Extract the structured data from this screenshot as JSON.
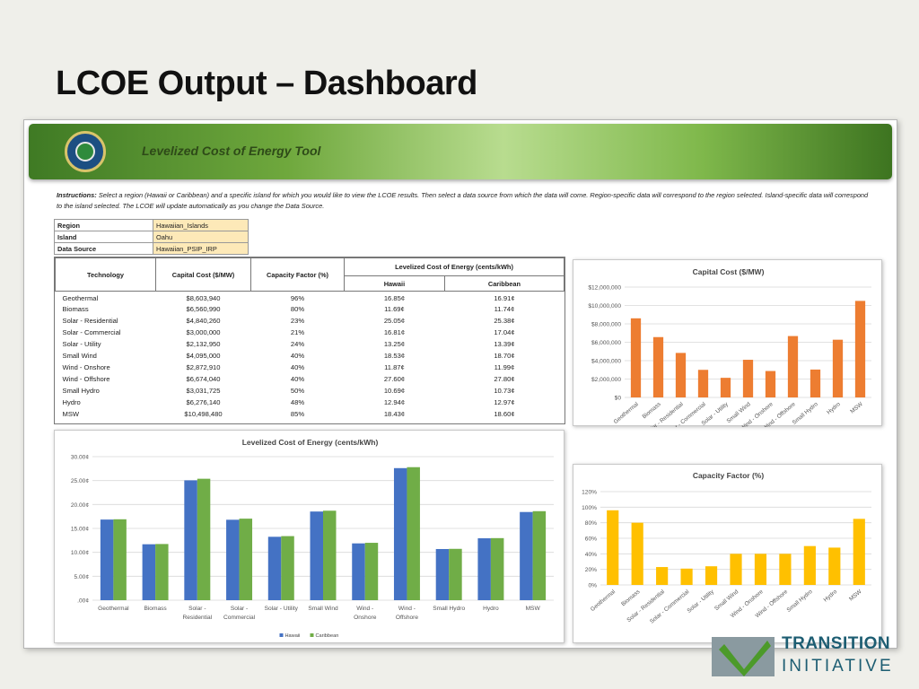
{
  "slide": {
    "title": "LCOE Output – Dashboard"
  },
  "tool": {
    "title": "Levelized Cost of Energy Tool",
    "instructions_label": "Instructions:",
    "instructions_text": "Select a region (Hawaii or Caribbean) and a specific island for which you would like to view the LCOE results. Then select a data source from which the data will come. Region-specific data will correspond to the region selected. Island-specific data will correspond to the island selected. The LCOE will update automatically as you change the Data Source."
  },
  "selectors": {
    "region_label": "Region",
    "region_value": "Hawaiian_Islands",
    "island_label": "Island",
    "island_value": "Oahu",
    "source_label": "Data Source",
    "source_value": "Hawaiian_PSIP_IRP"
  },
  "table": {
    "headers": {
      "technology": "Technology",
      "capital": "Capital Cost ($/MW)",
      "capacity": "Capacity Factor (%)",
      "lcoe": "Levelized Cost of Energy (cents/kWh)",
      "hawaii": "Hawaii",
      "caribbean": "Caribbean"
    },
    "rows": [
      {
        "tech": "Geothermal",
        "capital": "$8,603,940",
        "cf": "96%",
        "hawaii": "16.85¢",
        "caribbean": "16.91¢"
      },
      {
        "tech": "Biomass",
        "capital": "$6,560,990",
        "cf": "80%",
        "hawaii": "11.69¢",
        "caribbean": "11.74¢"
      },
      {
        "tech": "Solar - Residential",
        "capital": "$4,840,260",
        "cf": "23%",
        "hawaii": "25.05¢",
        "caribbean": "25.38¢"
      },
      {
        "tech": "Solar - Commercial",
        "capital": "$3,000,000",
        "cf": "21%",
        "hawaii": "16.81¢",
        "caribbean": "17.04¢"
      },
      {
        "tech": "Solar - Utility",
        "capital": "$2,132,950",
        "cf": "24%",
        "hawaii": "13.25¢",
        "caribbean": "13.39¢"
      },
      {
        "tech": "Small Wind",
        "capital": "$4,095,000",
        "cf": "40%",
        "hawaii": "18.53¢",
        "caribbean": "18.70¢"
      },
      {
        "tech": "Wind - Onshore",
        "capital": "$2,872,910",
        "cf": "40%",
        "hawaii": "11.87¢",
        "caribbean": "11.99¢"
      },
      {
        "tech": "Wind - Offshore",
        "capital": "$6,674,040",
        "cf": "40%",
        "hawaii": "27.60¢",
        "caribbean": "27.80¢"
      },
      {
        "tech": "Small Hydro",
        "capital": "$3,031,725",
        "cf": "50%",
        "hawaii": "10.69¢",
        "caribbean": "10.73¢"
      },
      {
        "tech": "Hydro",
        "capital": "$6,276,140",
        "cf": "48%",
        "hawaii": "12.94¢",
        "caribbean": "12.97¢"
      },
      {
        "tech": "MSW",
        "capital": "$10,498,480",
        "cf": "85%",
        "hawaii": "18.43¢",
        "caribbean": "18.60¢"
      }
    ]
  },
  "logo": {
    "line1": "TRANSITION",
    "line2": "INITIATIVE"
  },
  "chart_data": [
    {
      "id": "lcoe",
      "type": "bar",
      "title": "Levelized Cost of Energy (cents/kWh)",
      "categories": [
        "Geothermal",
        "Biomass",
        "Solar - Residential",
        "Solar - Commercial",
        "Solar - Utility",
        "Small Wind",
        "Wind - Onshore",
        "Wind - Offshore",
        "Small Hydro",
        "Hydro",
        "MSW"
      ],
      "category_labels": [
        [
          "Geothermal"
        ],
        [
          "Biomass"
        ],
        [
          "Solar -",
          "Residential"
        ],
        [
          "Solar -",
          "Commercial"
        ],
        [
          "Solar - Utility"
        ],
        [
          "Small Wind"
        ],
        [
          "Wind -",
          "Onshore"
        ],
        [
          "Wind -",
          "Offshore"
        ],
        [
          "Small Hydro"
        ],
        [
          "Hydro"
        ],
        [
          "MSW"
        ]
      ],
      "series": [
        {
          "name": "Hawaii",
          "color": "#4472c4",
          "values": [
            16.85,
            11.69,
            25.05,
            16.81,
            13.25,
            18.53,
            11.87,
            27.6,
            10.69,
            12.94,
            18.43
          ]
        },
        {
          "name": "Caribbean",
          "color": "#70ad47",
          "values": [
            16.91,
            11.74,
            25.38,
            17.04,
            13.39,
            18.7,
            11.99,
            27.8,
            10.73,
            12.97,
            18.6
          ]
        }
      ],
      "ylim": [
        0,
        30
      ],
      "yticks": [
        ".00¢",
        "5.00¢",
        "10.00¢",
        "15.00¢",
        "20.00¢",
        "25.00¢",
        "30.00¢"
      ],
      "legend": "bottom",
      "grid": true
    },
    {
      "id": "capital",
      "type": "bar",
      "title": "Capital Cost ($/MW)",
      "categories": [
        "Geothermal",
        "Biomass",
        "Solar - Residential",
        "Solar - Commercial",
        "Solar - Utility",
        "Small Wind",
        "Wind - Onshore",
        "Wind - Offshore",
        "Small Hydro",
        "Hydro",
        "MSW"
      ],
      "series": [
        {
          "color": "#ed7d31",
          "values": [
            8603940,
            6560990,
            4840260,
            3000000,
            2132950,
            4095000,
            2872910,
            6674040,
            3031725,
            6276140,
            10498480
          ]
        }
      ],
      "ylim": [
        0,
        12000000
      ],
      "yticks": [
        "$0",
        "$2,000,000",
        "$4,000,000",
        "$6,000,000",
        "$8,000,000",
        "$10,000,000",
        "$12,000,000"
      ],
      "grid": true
    },
    {
      "id": "capacity",
      "type": "bar",
      "title": "Capacity Factor (%)",
      "categories": [
        "Geothermal",
        "Biomass",
        "Solar - Residential",
        "Solar - Commercial",
        "Solar - Utility",
        "Small Wind",
        "Wind - Onshore",
        "Wind - Offshore",
        "Small Hydro",
        "Hydro",
        "MSW"
      ],
      "series": [
        {
          "color": "#ffc000",
          "values": [
            96,
            80,
            23,
            21,
            24,
            40,
            40,
            40,
            50,
            48,
            85
          ]
        }
      ],
      "ylim": [
        0,
        120
      ],
      "yticks": [
        "0%",
        "20%",
        "40%",
        "60%",
        "80%",
        "100%",
        "120%"
      ],
      "grid": true
    }
  ]
}
